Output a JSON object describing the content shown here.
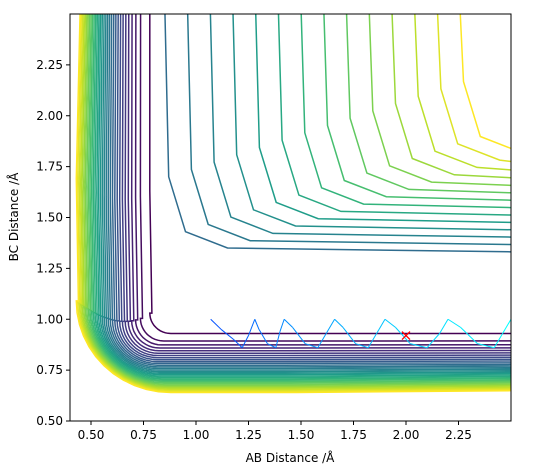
{
  "chart_data": {
    "type": "contour",
    "title": "",
    "xlabel": "AB Distance /Å",
    "ylabel": "BC Distance /Å",
    "xlim": [
      0.4,
      2.5
    ],
    "ylim": [
      0.5,
      2.5
    ],
    "xticks": [
      "0.50",
      "0.75",
      "1.00",
      "1.25",
      "1.50",
      "1.75",
      "2.00",
      "2.25"
    ],
    "xtick_values": [
      0.5,
      0.75,
      1.0,
      1.25,
      1.5,
      1.75,
      2.0,
      2.25
    ],
    "yticks": [
      "0.50",
      "0.75",
      "1.00",
      "1.25",
      "1.50",
      "1.75",
      "2.00",
      "2.25"
    ],
    "ytick_values": [
      0.5,
      0.75,
      1.0,
      1.25,
      1.5,
      1.75,
      2.0,
      2.25
    ],
    "colormap": [
      "#440154",
      "#482878",
      "#3e4989",
      "#31688e",
      "#26828e",
      "#1f9e89",
      "#35b779",
      "#6ece58",
      "#b5de2b",
      "#fde725"
    ],
    "contour_levels": 32,
    "trajectory": {
      "description_color": "#0000ff",
      "points": [
        [
          1.07,
          1.0
        ],
        [
          1.12,
          0.95
        ],
        [
          1.18,
          0.9
        ],
        [
          1.22,
          0.86
        ],
        [
          1.25,
          0.92
        ],
        [
          1.28,
          1.0
        ],
        [
          1.3,
          0.95
        ],
        [
          1.34,
          0.88
        ],
        [
          1.38,
          0.86
        ],
        [
          1.4,
          0.94
        ],
        [
          1.42,
          1.0
        ],
        [
          1.46,
          0.96
        ],
        [
          1.52,
          0.88
        ],
        [
          1.58,
          0.86
        ],
        [
          1.62,
          0.93
        ],
        [
          1.66,
          1.0
        ],
        [
          1.7,
          0.96
        ],
        [
          1.76,
          0.88
        ],
        [
          1.82,
          0.86
        ],
        [
          1.86,
          0.93
        ],
        [
          1.9,
          1.0
        ],
        [
          1.95,
          0.96
        ],
        [
          2.02,
          0.88
        ],
        [
          2.1,
          0.86
        ],
        [
          2.16,
          0.93
        ],
        [
          2.2,
          1.0
        ],
        [
          2.26,
          0.96
        ],
        [
          2.34,
          0.88
        ],
        [
          2.42,
          0.86
        ],
        [
          2.46,
          0.93
        ],
        [
          2.5,
          1.0
        ]
      ]
    },
    "marker": {
      "x": 2.0,
      "y": 0.92,
      "symbol": "x",
      "color": "#ff0000"
    }
  }
}
